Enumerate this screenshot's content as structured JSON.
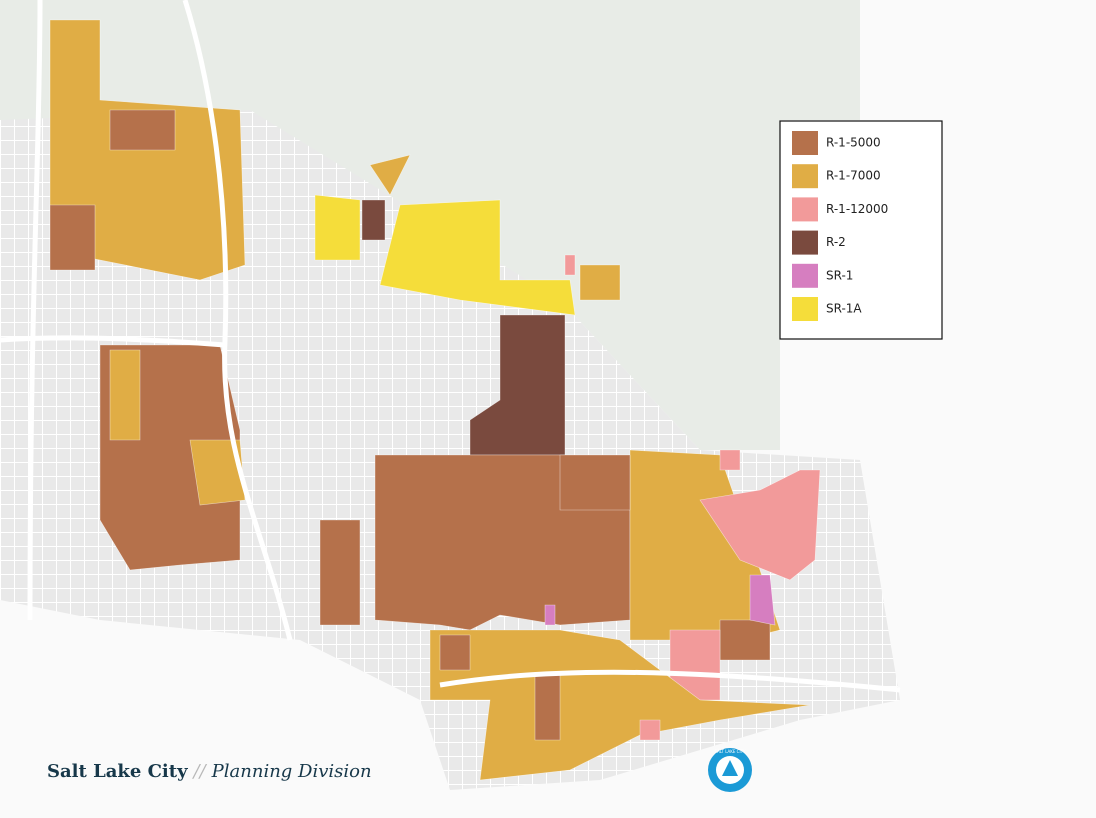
{
  "legend": {
    "items": [
      {
        "label": "R-1-5000",
        "color": "#b5714b"
      },
      {
        "label": "R-1-7000",
        "color": "#e0ad45"
      },
      {
        "label": "R-1-12000",
        "color": "#f29a9a"
      },
      {
        "label": "R-2",
        "color": "#7a4a3e"
      },
      {
        "label": "SR-1",
        "color": "#d67ec0"
      },
      {
        "label": "SR-1A",
        "color": "#f5dd3a"
      }
    ]
  },
  "footer": {
    "city": "Salt Lake City",
    "separator": "//",
    "division": "Planning Division"
  },
  "logo": {
    "text": "SALT LAKE CITY"
  }
}
